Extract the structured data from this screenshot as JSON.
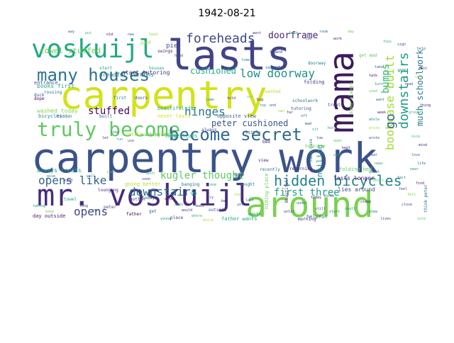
{
  "title": "1942-08-21",
  "words": [
    {
      "text": "carpentry work",
      "color": "#3b528b"
    },
    {
      "text": "carpentry",
      "color": "#d2e21b"
    },
    {
      "text": "lasts",
      "color": "#414487"
    },
    {
      "text": "mr. voskuijl",
      "color": "#472d7b"
    },
    {
      "text": "around",
      "color": "#7ad151"
    },
    {
      "text": "voskuijl",
      "color": "#22a884"
    },
    {
      "text": "mama",
      "color": "#3b1a5e"
    },
    {
      "text": "truly become",
      "color": "#5ec962"
    },
    {
      "text": "become secret",
      "color": "#31688e"
    },
    {
      "text": "many houses",
      "color": "#2c728e"
    },
    {
      "text": "hidden bicycles",
      "color": "#26828e"
    },
    {
      "text": "foreheads",
      "color": "#3e4989"
    },
    {
      "text": "low doorway",
      "color": "#21918c"
    },
    {
      "text": "hinges",
      "color": "#2a788e"
    },
    {
      "text": "bookcase built",
      "color": "#a0da39"
    },
    {
      "text": "downstairs",
      "color": "#1f9a8a"
    },
    {
      "text": "downstairs",
      "color": "#2c728e"
    },
    {
      "text": "opens like",
      "color": "#33638d"
    },
    {
      "text": "first three",
      "color": "#1e9b8a"
    },
    {
      "text": "opens",
      "color": "#414487"
    },
    {
      "text": "kugler thought",
      "color": "#5ec962"
    },
    {
      "text": "doorframe",
      "color": "#482576"
    },
    {
      "text": "much schoolwork",
      "color": "#2a788e"
    },
    {
      "text": "bumps",
      "color": "#35b779"
    },
    {
      "text": "go",
      "color": "#31688e"
    },
    {
      "text": "cushioned",
      "color": "#25ab82"
    },
    {
      "text": "peter cushioned",
      "color": "#38588c"
    },
    {
      "text": "stuffed",
      "color": "#440154"
    },
    {
      "text": "towel stuffed",
      "color": "#6ccd5a"
    },
    {
      "text": "nailing",
      "color": "#21918c"
    },
    {
      "text": "pie",
      "color": "#3b528b"
    },
    {
      "text": "dreadful sermons",
      "color": "#2a788e"
    },
    {
      "text": "start tutoring",
      "color": "#46327e"
    },
    {
      "text": "books first",
      "color": "#22a884"
    },
    {
      "text": "washed today",
      "color": "#86d549"
    },
    {
      "text": "always treats",
      "color": "#1f9e89"
    },
    {
      "text": "lasts longer",
      "color": "#482173"
    },
    {
      "text": "folding bed",
      "color": "#5ec962"
    },
    {
      "text": "lies around",
      "color": "#3e4989"
    },
    {
      "text": "going better",
      "color": "#b5de2b"
    },
    {
      "text": "father wants",
      "color": "#20a386"
    },
    {
      "text": "day outside",
      "color": "#481668"
    },
    {
      "text": "entrance",
      "color": "#3b528b"
    },
    {
      "text": "bicycles",
      "color": "#23898e"
    },
    {
      "text": "beautiful day",
      "color": "#25ab82"
    },
    {
      "text": "opposite view",
      "color": "#355f8d"
    },
    {
      "text": "helpful",
      "color": "#287c8e"
    },
    {
      "text": "folding",
      "color": "#443983"
    },
    {
      "text": "mama always",
      "color": "#7ad151"
    },
    {
      "text": "gotten",
      "color": "#3e4989"
    },
    {
      "text": "towel",
      "color": "#1fa088"
    },
    {
      "text": "lounging",
      "color": "#482878"
    },
    {
      "text": "hidden",
      "color": "#2e6f8e"
    },
    {
      "text": "built",
      "color": "#33638d"
    },
    {
      "text": "returning",
      "color": "#472c7a"
    },
    {
      "text": "hiding place",
      "color": "#6ccd5a"
    },
    {
      "text": "banging",
      "color": "#2d708e"
    },
    {
      "text": "duck",
      "color": "#3b528b"
    },
    {
      "text": "never lasts",
      "color": "#d2e21b"
    },
    {
      "text": "little carpentry",
      "color": "#b5de2b"
    },
    {
      "text": "loggerheads",
      "color": "#22a884"
    },
    {
      "text": "treats",
      "color": "#3e4989"
    },
    {
      "text": "rousing",
      "color": "#2a788e"
    },
    {
      "text": "dope",
      "color": "#440154"
    },
    {
      "text": "walking around",
      "color": "#35b779"
    },
    {
      "text": "swings",
      "color": "#482576"
    },
    {
      "text": "tutoring",
      "color": "#3b528b"
    },
    {
      "text": "doorway",
      "color": "#287c8e"
    },
    {
      "text": "secret",
      "color": "#21918c"
    },
    {
      "text": "stand",
      "color": "#414487"
    },
    {
      "text": "get mad",
      "color": "#5ec962"
    },
    {
      "text": "gave",
      "color": "#3b528b"
    },
    {
      "text": "mama gave",
      "color": "#23898e"
    },
    {
      "text": "think peter",
      "color": "#31688e"
    },
    {
      "text": "morning",
      "color": "#482173"
    },
    {
      "text": "schoolwork",
      "color": "#2c728e"
    },
    {
      "text": "beautiful",
      "color": "#46327e"
    },
    {
      "text": "always",
      "color": "#3e4989"
    },
    {
      "text": "start",
      "color": "#1f9e89"
    },
    {
      "text": "first",
      "color": "#287c8e"
    },
    {
      "text": "good",
      "color": "#a0da39"
    },
    {
      "text": "thought",
      "color": "#2a788e"
    },
    {
      "text": "view",
      "color": "#482878"
    },
    {
      "text": "doors",
      "color": "#3e4989"
    },
    {
      "text": "houses",
      "color": "#22a884"
    },
    {
      "text": "little",
      "color": "#31688e"
    },
    {
      "text": "bed",
      "color": "#482576"
    },
    {
      "text": "wants",
      "color": "#1fa088"
    },
    {
      "text": "outside",
      "color": "#3b528b"
    },
    {
      "text": "bookcase",
      "color": "#7ad151"
    },
    {
      "text": "get",
      "color": "#33638d"
    },
    {
      "text": "place",
      "color": "#443983"
    },
    {
      "text": "recently",
      "color": "#287c8e"
    },
    {
      "text": "washed",
      "color": "#b5de2b"
    },
    {
      "text": "today",
      "color": "#2e6f8e"
    },
    {
      "text": "peter",
      "color": "#3b528b"
    },
    {
      "text": "father",
      "color": "#440154"
    },
    {
      "text": "taking",
      "color": "#1f9a8a"
    },
    {
      "text": "ground",
      "color": "#35b779"
    },
    {
      "text": "thing",
      "color": "#482173"
    },
    {
      "text": "near",
      "color": "#21918c"
    },
    {
      "text": "close",
      "color": "#3e4989"
    },
    {
      "text": "sure",
      "color": "#5ec962"
    },
    {
      "text": "knew",
      "color": "#2a788e"
    },
    {
      "text": "lives",
      "color": "#414487"
    },
    {
      "text": "fuss",
      "color": "#22a884"
    },
    {
      "text": "sign",
      "color": "#3b528b"
    },
    {
      "text": "help",
      "color": "#2c728e"
    },
    {
      "text": "work",
      "color": "#481668"
    },
    {
      "text": "day",
      "color": "#6ccd5a"
    },
    {
      "text": "room",
      "color": "#31688e"
    },
    {
      "text": "lie",
      "color": "#3e4989"
    },
    {
      "text": "back",
      "color": "#1fa088"
    },
    {
      "text": "went",
      "color": "#46327e"
    },
    {
      "text": "time",
      "color": "#287c8e"
    },
    {
      "text": "told",
      "color": "#482878"
    },
    {
      "text": "came",
      "color": "#23898e"
    },
    {
      "text": "hand",
      "color": "#3b528b"
    },
    {
      "text": "head",
      "color": "#a0da39"
    },
    {
      "text": "new",
      "color": "#2e6f8e"
    },
    {
      "text": "old",
      "color": "#440154"
    },
    {
      "text": "put",
      "color": "#35b779"
    },
    {
      "text": "way",
      "color": "#33638d"
    },
    {
      "text": "also",
      "color": "#482576"
    },
    {
      "text": "even",
      "color": "#1f9e89"
    },
    {
      "text": "make",
      "color": "#3e4989"
    },
    {
      "text": "just",
      "color": "#5ec962"
    },
    {
      "text": "well",
      "color": "#31688e"
    },
    {
      "text": "kind",
      "color": "#482173"
    },
    {
      "text": "give",
      "color": "#2c728e"
    },
    {
      "text": "keep",
      "color": "#7ad151"
    },
    {
      "text": "long",
      "color": "#414487"
    },
    {
      "text": "see",
      "color": "#2a788e"
    },
    {
      "text": "say",
      "color": "#22a884"
    },
    {
      "text": "try",
      "color": "#3b528b"
    },
    {
      "text": "bad",
      "color": "#481668"
    },
    {
      "text": "yet",
      "color": "#287c8e"
    },
    {
      "text": "one",
      "color": "#1fa088"
    },
    {
      "text": "two",
      "color": "#3e4989"
    },
    {
      "text": "now",
      "color": "#b5de2b"
    },
    {
      "text": "last",
      "color": "#2e6f8e"
    },
    {
      "text": "soon",
      "color": "#46327e"
    },
    {
      "text": "much",
      "color": "#35b779"
    },
    {
      "text": "like",
      "color": "#33638d"
    },
    {
      "text": "let",
      "color": "#482878"
    },
    {
      "text": "run",
      "color": "#1f9a8a"
    },
    {
      "text": "use",
      "color": "#3b528b"
    },
    {
      "text": "set",
      "color": "#6ccd5a"
    },
    {
      "text": "big",
      "color": "#440154"
    },
    {
      "text": "top",
      "color": "#21918c"
    },
    {
      "text": "end",
      "color": "#31688e"
    },
    {
      "text": "own",
      "color": "#a0da39"
    },
    {
      "text": "far",
      "color": "#482576"
    },
    {
      "text": "off",
      "color": "#2c728e"
    },
    {
      "text": "mad",
      "color": "#3e4989"
    },
    {
      "text": "sit",
      "color": "#22a884"
    },
    {
      "text": "low",
      "color": "#414487"
    },
    {
      "text": "hit",
      "color": "#2a788e"
    },
    {
      "text": "open",
      "color": "#5ec962"
    },
    {
      "text": "kept",
      "color": "#482173"
    },
    {
      "text": "side",
      "color": "#1fa088"
    },
    {
      "text": "fact",
      "color": "#287c8e"
    },
    {
      "text": "feel",
      "color": "#3b528b"
    },
    {
      "text": "felt",
      "color": "#7ad151"
    },
    {
      "text": "find",
      "color": "#481668"
    },
    {
      "text": "life",
      "color": "#33638d"
    },
    {
      "text": "love",
      "color": "#2e6f8e"
    },
    {
      "text": "mind",
      "color": "#46327e"
    },
    {
      "text": "nice",
      "color": "#35b779"
    },
    {
      "text": "read",
      "color": "#3e4989"
    },
    {
      "text": "real",
      "color": "#b5de2b"
    },
    {
      "text": "rest",
      "color": "#482878"
    },
    {
      "text": "seem",
      "color": "#1f9e89"
    },
    {
      "text": "take",
      "color": "#31688e"
    },
    {
      "text": "talk",
      "color": "#440154"
    },
    {
      "text": "turn",
      "color": "#23898e"
    },
    {
      "text": "used",
      "color": "#6ccd5a"
    },
    {
      "text": "want",
      "color": "#2c728e"
    },
    {
      "text": "week",
      "color": "#482576"
    },
    {
      "text": "whole",
      "color": "#21918c"
    },
    {
      "text": "write",
      "color": "#a0da39"
    },
    {
      "text": "wrote",
      "color": "#3b528b"
    },
    {
      "text": "year",
      "color": "#414487"
    },
    {
      "text": "news",
      "color": "#22a884"
    },
    {
      "text": "quiet",
      "color": "#2a788e"
    },
    {
      "text": "short",
      "color": "#5ec962"
    },
    {
      "text": "sleep",
      "color": "#482173"
    },
    {
      "text": "small",
      "color": "#1fa088"
    },
    {
      "text": "start",
      "color": "#287c8e"
    },
    {
      "text": "still",
      "color": "#3e4989"
    },
    {
      "text": "think",
      "color": "#7ad151"
    },
    {
      "text": "three",
      "color": "#33638d"
    },
    {
      "text": "today",
      "color": "#481668"
    },
    {
      "text": "under",
      "color": "#2e6f8e"
    },
    {
      "text": "until",
      "color": "#46327e"
    },
    {
      "text": "where",
      "color": "#35b779"
    },
    {
      "text": "while",
      "color": "#b5de2b"
    },
    {
      "text": "would",
      "color": "#482878"
    },
    {
      "text": "young",
      "color": "#1f9e89"
    }
  ]
}
